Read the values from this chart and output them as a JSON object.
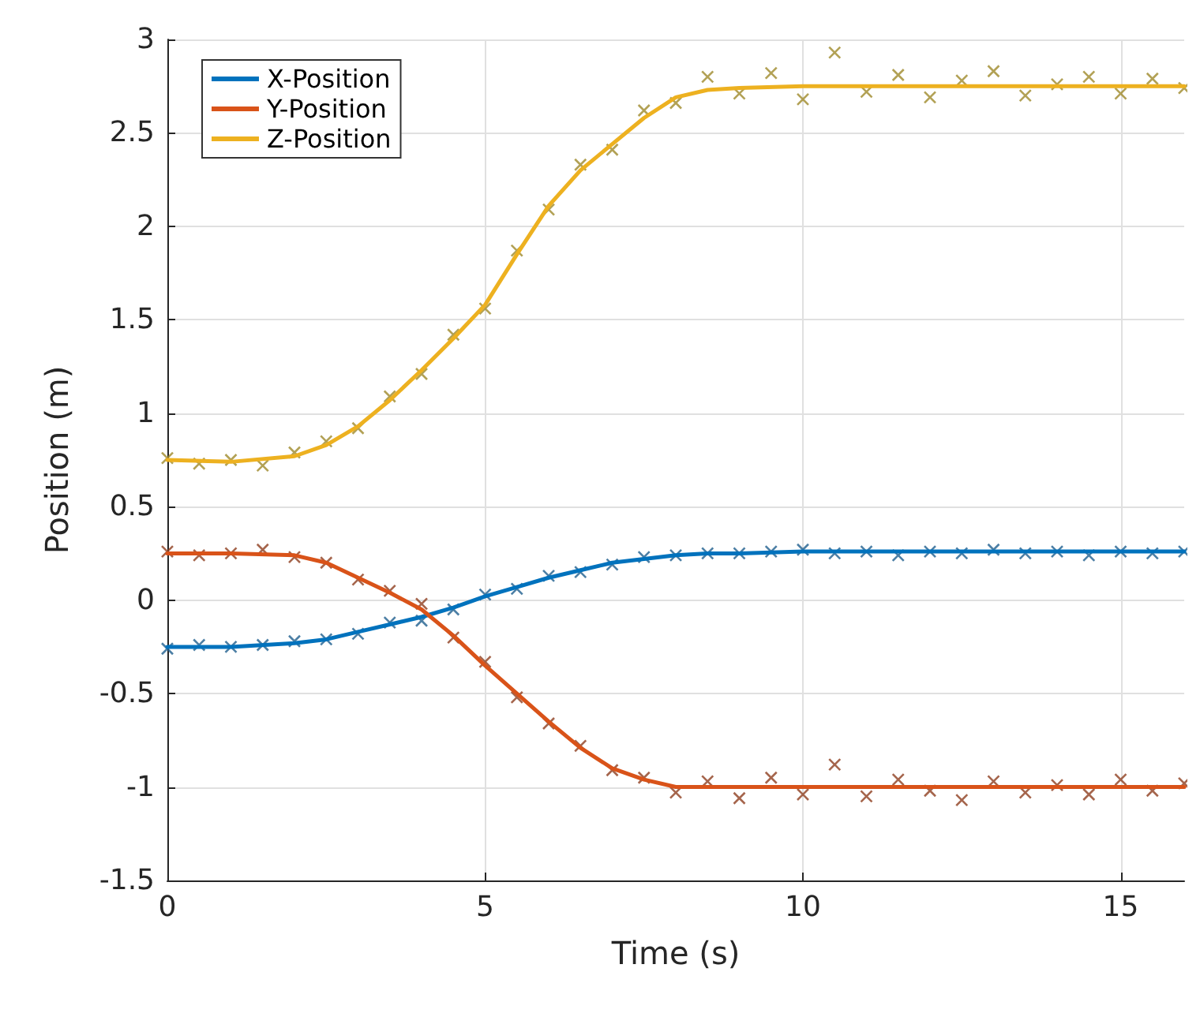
{
  "chart_data": {
    "type": "line",
    "xlabel": "Time (s)",
    "ylabel": "Position (m)",
    "xlim": [
      0,
      16
    ],
    "xticks": [
      0,
      5,
      10,
      15
    ],
    "ylim": [
      -1.5,
      3
    ],
    "yticks": [
      -1.5,
      -1,
      -0.5,
      0,
      0.5,
      1,
      1.5,
      2,
      2.5,
      3
    ],
    "grid": true,
    "legend": "top left",
    "series": [
      {
        "name": "X-Position",
        "marker": "none",
        "color": "#0072bd",
        "x": [
          0,
          1,
          2,
          2.5,
          3,
          3.5,
          4,
          4.5,
          5,
          5.5,
          6,
          6.5,
          7,
          7.5,
          8,
          8.5,
          9,
          10,
          12,
          16
        ],
        "values": [
          -0.25,
          -0.25,
          -0.23,
          -0.21,
          -0.17,
          -0.13,
          -0.09,
          -0.04,
          0.02,
          0.07,
          0.12,
          0.16,
          0.2,
          0.22,
          0.24,
          0.25,
          0.25,
          0.26,
          0.26,
          0.26
        ]
      },
      {
        "name": "Y-Position",
        "marker": "none",
        "color": "#d95319",
        "x": [
          0,
          1,
          2,
          2.5,
          3,
          3.5,
          4,
          4.5,
          5,
          5.5,
          6,
          6.5,
          7,
          7.5,
          8,
          8.5,
          9,
          10,
          12,
          16
        ],
        "values": [
          0.25,
          0.25,
          0.24,
          0.2,
          0.12,
          0.04,
          -0.05,
          -0.19,
          -0.35,
          -0.5,
          -0.65,
          -0.79,
          -0.9,
          -0.96,
          -1.0,
          -1.0,
          -1.0,
          -1.0,
          -1.0,
          -1.0
        ]
      },
      {
        "name": "Z-Position",
        "marker": "none",
        "color": "#edb120",
        "x": [
          0,
          1,
          2,
          2.5,
          3,
          3.5,
          4,
          4.5,
          5,
          5.5,
          6,
          6.5,
          7,
          7.5,
          8,
          8.5,
          9,
          10,
          12,
          16
        ],
        "values": [
          0.75,
          0.74,
          0.77,
          0.83,
          0.93,
          1.07,
          1.23,
          1.4,
          1.58,
          1.85,
          2.11,
          2.3,
          2.44,
          2.58,
          2.69,
          2.73,
          2.74,
          2.75,
          2.75,
          2.75
        ]
      },
      {
        "type": "scatter",
        "marker": "cross",
        "color": "#1f5f8f",
        "x": [
          0,
          0.5,
          1,
          1.5,
          2,
          2.5,
          3,
          3.5,
          4,
          4.5,
          5,
          5.5,
          6,
          6.5,
          7,
          7.5,
          8,
          8.5,
          9,
          9.5,
          10,
          10.5,
          11,
          11.5,
          12,
          12.5,
          13,
          13.5,
          14,
          14.5,
          15,
          15.5,
          16
        ],
        "values": [
          -0.26,
          -0.24,
          -0.25,
          -0.24,
          -0.22,
          -0.21,
          -0.18,
          -0.12,
          -0.11,
          -0.05,
          0.03,
          0.06,
          0.13,
          0.15,
          0.19,
          0.23,
          0.24,
          0.25,
          0.25,
          0.26,
          0.27,
          0.25,
          0.26,
          0.24,
          0.26,
          0.25,
          0.27,
          0.25,
          0.26,
          0.24,
          0.26,
          0.25,
          0.26
        ]
      },
      {
        "type": "scatter",
        "marker": "cross",
        "color": "#8f3f1f",
        "x": [
          0,
          0.5,
          1,
          1.5,
          2,
          2.5,
          3,
          3.5,
          4,
          4.5,
          5,
          5.5,
          6,
          6.5,
          7,
          7.5,
          8,
          8.5,
          9,
          9.5,
          10,
          10.5,
          11,
          11.5,
          12,
          12.5,
          13,
          13.5,
          14,
          14.5,
          15,
          15.5,
          16
        ],
        "values": [
          0.26,
          0.24,
          0.25,
          0.27,
          0.23,
          0.2,
          0.11,
          0.05,
          -0.02,
          -0.2,
          -0.33,
          -0.52,
          -0.66,
          -0.78,
          -0.91,
          -0.95,
          -1.03,
          -0.97,
          -1.06,
          -0.95,
          -1.04,
          -0.88,
          -1.05,
          -0.96,
          -1.02,
          -1.07,
          -0.97,
          -1.03,
          -0.99,
          -1.04,
          -0.96,
          -1.02,
          -0.98
        ]
      },
      {
        "type": "scatter",
        "marker": "cross",
        "color": "#9f8a2a",
        "x": [
          0,
          0.5,
          1,
          1.5,
          2,
          2.5,
          3,
          3.5,
          4,
          4.5,
          5,
          5.5,
          6,
          6.5,
          7,
          7.5,
          8,
          8.5,
          9,
          9.5,
          10,
          10.5,
          11,
          11.5,
          12,
          12.5,
          13,
          13.5,
          14,
          14.5,
          15,
          15.5,
          16
        ],
        "values": [
          0.76,
          0.73,
          0.75,
          0.72,
          0.79,
          0.85,
          0.92,
          1.09,
          1.21,
          1.42,
          1.56,
          1.87,
          2.09,
          2.33,
          2.41,
          2.62,
          2.66,
          2.8,
          2.71,
          2.82,
          2.68,
          2.93,
          2.72,
          2.81,
          2.69,
          2.78,
          2.83,
          2.7,
          2.76,
          2.8,
          2.71,
          2.79,
          2.74
        ]
      }
    ]
  }
}
